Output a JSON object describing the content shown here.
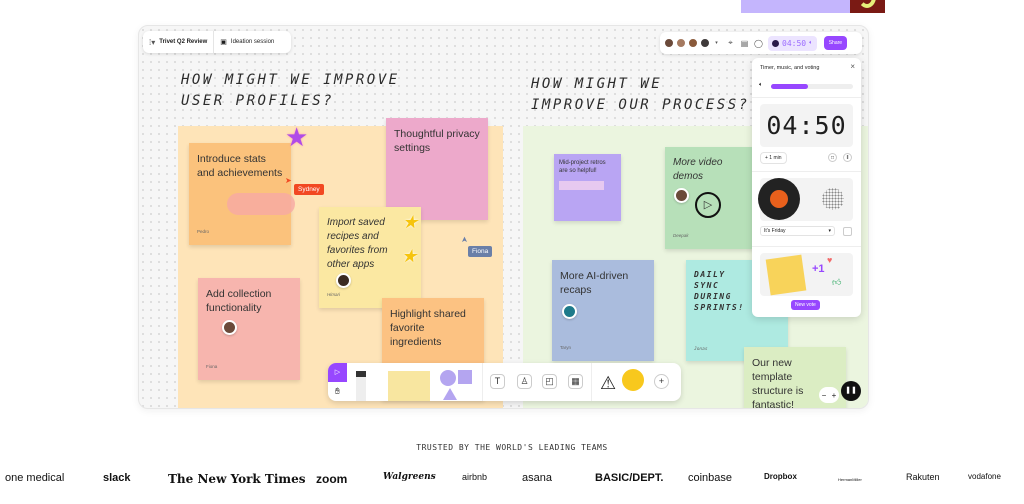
{
  "board": {
    "file_name": "Trivet Q2 Review",
    "page_name": "Ideation session",
    "timer_value": "04:50",
    "share_label": "Share",
    "accent_color": "#9747ff"
  },
  "sections": [
    {
      "heading": "HOW MIGHT WE IMPROVE\nUSER PROFILES?"
    },
    {
      "heading": "HOW MIGHT WE\nIMPROVE OUR PROCESS?"
    }
  ],
  "stickies": [
    {
      "text": "Introduce stats and achievements",
      "author": "Pedro",
      "color": "#fbc27c"
    },
    {
      "text": "Thoughtful privacy settings",
      "author": "",
      "color": "#eda9cb"
    },
    {
      "text": "Import saved recipes and favorites from other apps",
      "author": "Himari",
      "color": "#fbe8a2"
    },
    {
      "text": "Add collection functionality",
      "author": "Fiona",
      "color": "#f7b5ae"
    },
    {
      "text": "Highlight shared favorite ingredients",
      "author": "",
      "color": "#fcc282"
    },
    {
      "text": "Mid-project retros are so helpful!",
      "author": "",
      "color": "#b9a5f3"
    },
    {
      "text": "More video demos",
      "author": "Deepak",
      "color": "#b7e0b9"
    },
    {
      "text": "More AI-driven recaps",
      "author": "Taryn",
      "color": "#aabcdd"
    },
    {
      "text": "DAILY SYNC DURING SPRINTS!",
      "author": "Jonas",
      "color": "#aeeae1"
    },
    {
      "text": "Our new template structure is fantastic!",
      "author": "",
      "color": "#dbedc3"
    }
  ],
  "cursors": [
    {
      "name": "Sydney",
      "color": "#f24822"
    },
    {
      "name": "Fiona",
      "color": "#6a7fa8"
    }
  ],
  "panel": {
    "title": "Timer, music, and voting",
    "volume_percent": 45,
    "timer": "04:50",
    "add_minute": "+ 1 min",
    "track": "It's Friday",
    "vote_button": "New vote"
  },
  "footer": {
    "trusted_label": "TRUSTED BY THE WORLD'S LEADING TEAMS",
    "logos": [
      "one medical",
      "slack",
      "The New York Times",
      "zoom",
      "Walgreens",
      "airbnb",
      "asana",
      "BASIC/DEPT.",
      "coinbase",
      "Dropbox",
      "HermanMiller",
      "Rakuten",
      "vodafone"
    ]
  }
}
